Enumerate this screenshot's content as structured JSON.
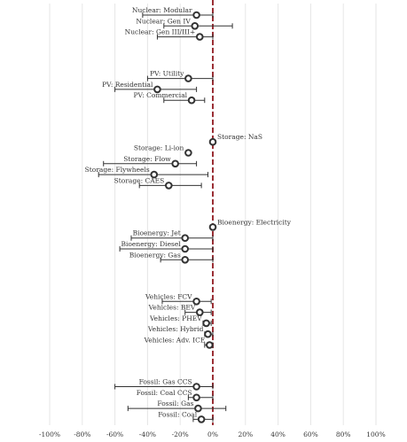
{
  "chart_data": {
    "type": "dot_range",
    "categories": [
      "Nuclear: Modular",
      "Nuclear: Gen IV",
      "Nuclear: Gen III/III+",
      "PV: Utility",
      "PV: Residential",
      "PV: Commercial",
      "Storage: NaS",
      "Storage: Li-ion",
      "Storage: Flow",
      "Storage: Flywheels",
      "Storage: CAES",
      "Bioenergy: Electricity",
      "Bioenergy: Jet",
      "Bioenergy: Diesel",
      "Bioenergy: Gas",
      "Vehicles: FCV",
      "Vehicles: BEV",
      "Vehicles: PHEV",
      "Vehicles: Hybrid",
      "Vehicles: Adv. ICE",
      "Fossil: Gas CCS",
      "Fossil: Coal CCS",
      "Fossil: Gas",
      "Fossil: Coal"
    ],
    "values": [
      -10,
      -11,
      -8,
      -15,
      -34,
      -13,
      0,
      -15,
      -23,
      -36,
      -27,
      0,
      -17,
      -17,
      -17,
      -10,
      -8,
      -4,
      -3,
      -2,
      -10,
      -10,
      -9,
      -7
    ],
    "low": [
      -43,
      -30,
      -34,
      -40,
      -60,
      -30,
      null,
      null,
      -67,
      -70,
      -45,
      null,
      -50,
      -57,
      -32,
      -31,
      -17,
      -6,
      -5,
      -5,
      -60,
      -15,
      -52,
      -12
    ],
    "high": [
      0,
      12,
      0,
      0,
      -10,
      -5,
      null,
      null,
      -10,
      -3,
      -7,
      null,
      0,
      0,
      0,
      -1,
      -1,
      -1,
      0,
      0,
      0,
      0,
      8,
      0
    ],
    "xlim": [
      -100,
      100
    ],
    "xticks": [
      {
        "value": -100,
        "label": "-100%"
      },
      {
        "value": -80,
        "label": "-80%"
      },
      {
        "value": -60,
        "label": "-60%"
      },
      {
        "value": -40,
        "label": "-40%"
      },
      {
        "value": -20,
        "label": "-20%"
      },
      {
        "value": 0,
        "label": "0%"
      },
      {
        "value": 20,
        "label": "20%"
      },
      {
        "value": 40,
        "label": "40%"
      },
      {
        "value": 60,
        "label": "60%"
      },
      {
        "value": 80,
        "label": "80%"
      },
      {
        "value": 100,
        "label": "100%"
      }
    ],
    "grid": true,
    "color": "#333333",
    "reference_line": 0,
    "reference_color": "#9b2f35"
  }
}
